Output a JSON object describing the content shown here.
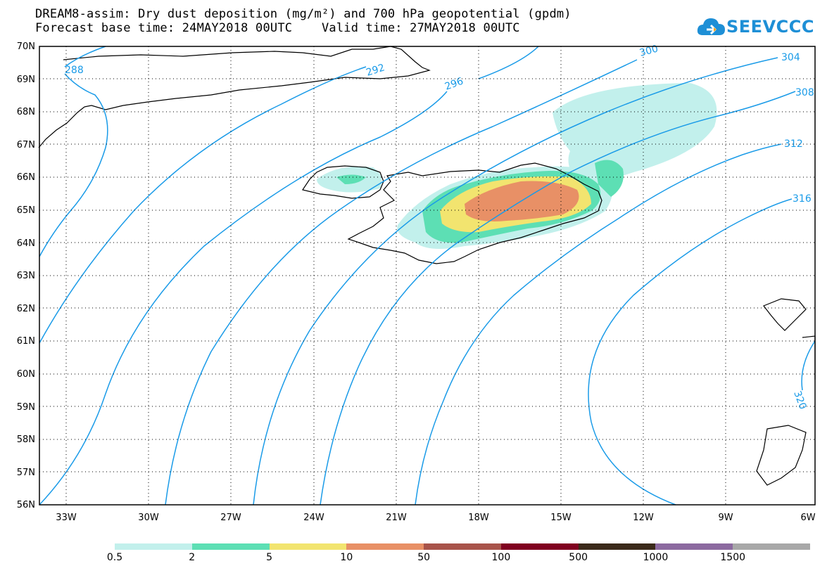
{
  "title_line1": "DREAM8-assim: Dry dust deposition (mg/m²) and 700 hPa geopotential (gpdm)",
  "title_line2": "Forecast base time: 24MAY2018 00UTC    Valid time: 27MAY2018 00UTC",
  "logo_text": "SEEVCCC",
  "logo_icon": "cloud-icon",
  "map": {
    "lat_labels": [
      "70N",
      "69N",
      "68N",
      "67N",
      "66N",
      "65N",
      "64N",
      "63N",
      "62N",
      "61N",
      "60N",
      "59N",
      "58N",
      "57N",
      "56N"
    ],
    "lon_labels": [
      "33W",
      "30W",
      "27W",
      "24W",
      "21W",
      "18W",
      "15W",
      "12W",
      "9W",
      "6W"
    ],
    "contour_labels": [
      "288",
      "292",
      "296",
      "300",
      "304",
      "308",
      "312",
      "316",
      "320"
    ],
    "contour_color": "#1a9be8"
  },
  "legend": {
    "colors": [
      "#c2f0ec",
      "#5ddfb4",
      "#f2e46f",
      "#e89066",
      "#a8534a",
      "#800020",
      "#3b2a1a",
      "#8c6aa0",
      "#a8a8a8"
    ],
    "labels": [
      "0.5",
      "2",
      "5",
      "10",
      "50",
      "100",
      "500",
      "1000",
      "1500"
    ]
  }
}
